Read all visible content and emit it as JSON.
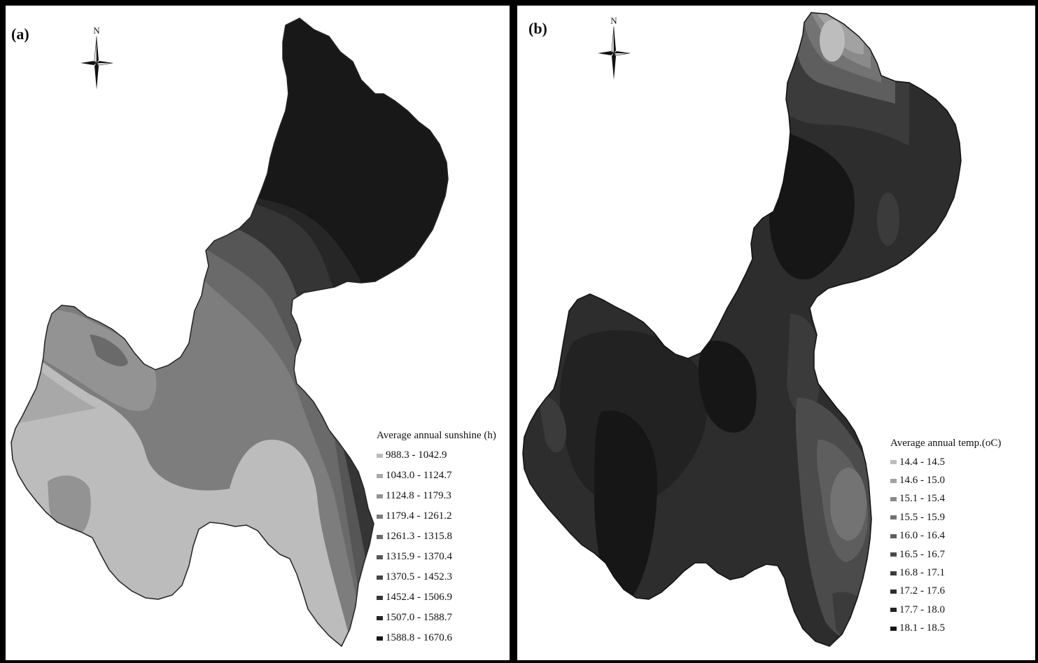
{
  "panels": [
    {
      "label": "(a)",
      "north_label": "N",
      "legend": {
        "title": "Average annual sunshine (h)",
        "classes": [
          {
            "range": "988.3 - 1042.9",
            "color": "#bcbcbc"
          },
          {
            "range": "1043.0 - 1124.7",
            "color": "#a8a8a8"
          },
          {
            "range": "1124.8 - 1179.3",
            "color": "#939393"
          },
          {
            "range": "1179.4 - 1261.2",
            "color": "#7d7d7d"
          },
          {
            "range": "1261.3 - 1315.8",
            "color": "#6a6a6a"
          },
          {
            "range": "1315.9 - 1370.4",
            "color": "#565656"
          },
          {
            "range": "1370.5 - 1452.3",
            "color": "#454545"
          },
          {
            "range": "1452.4 - 1506.9",
            "color": "#353535"
          },
          {
            "range": "1507.0 - 1588.7",
            "color": "#262626"
          },
          {
            "range": "1588.8 - 1670.6",
            "color": "#181818"
          }
        ]
      }
    },
    {
      "label": "(b)",
      "north_label": "N",
      "legend": {
        "title": "Average annual temp.(oC)",
        "classes": [
          {
            "range": "14.4 - 14.5",
            "color": "#bdbdbd"
          },
          {
            "range": "14.6 - 15.0",
            "color": "#a2a2a2"
          },
          {
            "range": "15.1 - 15.4",
            "color": "#8a8a8a"
          },
          {
            "range": "15.5 - 15.9",
            "color": "#737373"
          },
          {
            "range": "16.0 - 16.4",
            "color": "#5e5e5e"
          },
          {
            "range": "16.5 - 16.7",
            "color": "#4b4b4b"
          },
          {
            "range": "16.8 - 17.1",
            "color": "#3b3b3b"
          },
          {
            "range": "17.2 - 17.6",
            "color": "#2d2d2d"
          },
          {
            "range": "17.7 - 18.0",
            "color": "#222222"
          },
          {
            "range": "18.1 - 18.5",
            "color": "#161616"
          }
        ]
      }
    }
  ]
}
